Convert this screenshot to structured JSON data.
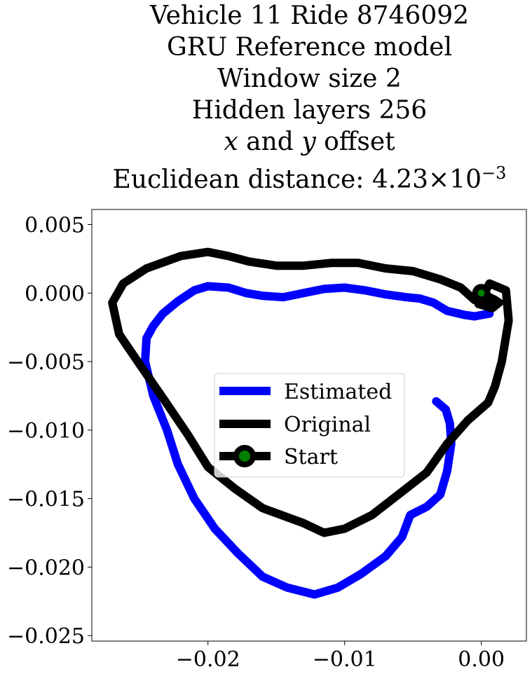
{
  "chart_data": {
    "type": "line",
    "title_lines": [
      "Vehicle 11 Ride 8746092",
      "GRU Reference model",
      "Window size 2",
      "Hidden layers 256"
    ],
    "title_offset_line": {
      "x_var": "x",
      "and": "and",
      "y_var": "y",
      "rest": "offset"
    },
    "title_distance_line": {
      "prefix": "Euclidean distance: 4.23",
      "times": "×",
      "base": "10",
      "exponent": "−3"
    },
    "xlim": [
      -0.0285,
      0.0033
    ],
    "ylim": [
      -0.0254,
      0.0061
    ],
    "xticks": [
      {
        "value": -0.02,
        "label": "−0.02"
      },
      {
        "value": -0.01,
        "label": "−0.01"
      },
      {
        "value": 0.0,
        "label": "0.00"
      }
    ],
    "yticks": [
      {
        "value": 0.005,
        "label": "0.005"
      },
      {
        "value": 0.0,
        "label": "0.000"
      },
      {
        "value": -0.005,
        "label": "−0.005"
      },
      {
        "value": -0.01,
        "label": "−0.010"
      },
      {
        "value": -0.015,
        "label": "−0.015"
      },
      {
        "value": -0.02,
        "label": "−0.020"
      },
      {
        "value": -0.025,
        "label": "−0.025"
      }
    ],
    "grid": false,
    "legend_position": "center",
    "series": [
      {
        "name": "Estimated",
        "color": "#0000ff",
        "points": [
          [
            0.0006,
            -0.0015
          ],
          [
            -0.0005,
            -0.0017
          ],
          [
            -0.0012,
            -0.0016
          ],
          [
            -0.0025,
            -0.0013
          ],
          [
            -0.0035,
            -0.0007
          ],
          [
            -0.0045,
            -0.0004
          ],
          [
            -0.0055,
            -0.0003
          ],
          [
            -0.007,
            -0.0001
          ],
          [
            -0.0085,
            0.0002
          ],
          [
            -0.01,
            0.0004
          ],
          [
            -0.0115,
            0.0003
          ],
          [
            -0.013,
            0.0
          ],
          [
            -0.0145,
            -0.0003
          ],
          [
            -0.016,
            -0.0002
          ],
          [
            -0.0172,
            0.0
          ],
          [
            -0.0185,
            0.0004
          ],
          [
            -0.02,
            0.0005
          ],
          [
            -0.021,
            0.0002
          ],
          [
            -0.0222,
            -0.0006
          ],
          [
            -0.0233,
            -0.0015
          ],
          [
            -0.024,
            -0.0024
          ],
          [
            -0.0245,
            -0.0033
          ],
          [
            -0.0246,
            -0.005
          ],
          [
            -0.024,
            -0.0075
          ],
          [
            -0.023,
            -0.01
          ],
          [
            -0.0222,
            -0.0125
          ],
          [
            -0.021,
            -0.015
          ],
          [
            -0.0195,
            -0.0172
          ],
          [
            -0.0178,
            -0.019
          ],
          [
            -0.016,
            -0.0207
          ],
          [
            -0.0142,
            -0.0215
          ],
          [
            -0.0122,
            -0.022
          ],
          [
            -0.0105,
            -0.0215
          ],
          [
            -0.0088,
            -0.0205
          ],
          [
            -0.007,
            -0.0192
          ],
          [
            -0.0058,
            -0.0178
          ],
          [
            -0.0052,
            -0.0162
          ],
          [
            -0.004,
            -0.0156
          ],
          [
            -0.003,
            -0.0147
          ],
          [
            -0.0025,
            -0.013
          ],
          [
            -0.0022,
            -0.011
          ],
          [
            -0.0023,
            -0.0095
          ],
          [
            -0.0026,
            -0.0085
          ],
          [
            -0.0033,
            -0.0079
          ]
        ]
      },
      {
        "name": "Original",
        "color": "#000000",
        "points": [
          [
            0.0,
            0.0
          ],
          [
            0.001,
            -0.0005
          ],
          [
            0.0013,
            -0.0007
          ],
          [
            0.0008,
            -0.0011
          ],
          [
            -0.0002,
            -0.0008
          ],
          [
            0.0006,
            0.0007
          ],
          [
            0.0018,
            0.0002
          ],
          [
            0.002,
            -0.002
          ],
          [
            0.0015,
            -0.005
          ],
          [
            0.001,
            -0.0068
          ],
          [
            0.0005,
            -0.008
          ],
          [
            -0.001,
            -0.0093
          ],
          [
            -0.0025,
            -0.011
          ],
          [
            -0.004,
            -0.0131
          ],
          [
            -0.0058,
            -0.0145
          ],
          [
            -0.008,
            -0.0162
          ],
          [
            -0.01,
            -0.0172
          ],
          [
            -0.0115,
            -0.0175
          ],
          [
            -0.013,
            -0.0168
          ],
          [
            -0.016,
            -0.0157
          ],
          [
            -0.018,
            -0.0143
          ],
          [
            -0.02,
            -0.0127
          ],
          [
            -0.0215,
            -0.0103
          ],
          [
            -0.0232,
            -0.0078
          ],
          [
            -0.025,
            -0.0052
          ],
          [
            -0.0265,
            -0.003
          ],
          [
            -0.027,
            -0.0007
          ],
          [
            -0.0262,
            0.0007
          ],
          [
            -0.0245,
            0.0018
          ],
          [
            -0.022,
            0.0027
          ],
          [
            -0.02,
            0.003
          ],
          [
            -0.0185,
            0.0027
          ],
          [
            -0.017,
            0.0023
          ],
          [
            -0.015,
            0.002
          ],
          [
            -0.013,
            0.002
          ],
          [
            -0.011,
            0.0022
          ],
          [
            -0.009,
            0.0022
          ],
          [
            -0.007,
            0.0018
          ],
          [
            -0.005,
            0.0016
          ],
          [
            -0.003,
            0.001
          ],
          [
            -0.0015,
            0.0004
          ],
          [
            -0.0005,
            -0.0005
          ],
          [
            0.0005,
            -0.0008
          ]
        ]
      }
    ],
    "start": {
      "name": "Start",
      "x": 0.0,
      "y": 0.0,
      "marker_color": "#008000",
      "edge_color": "#000000"
    }
  }
}
